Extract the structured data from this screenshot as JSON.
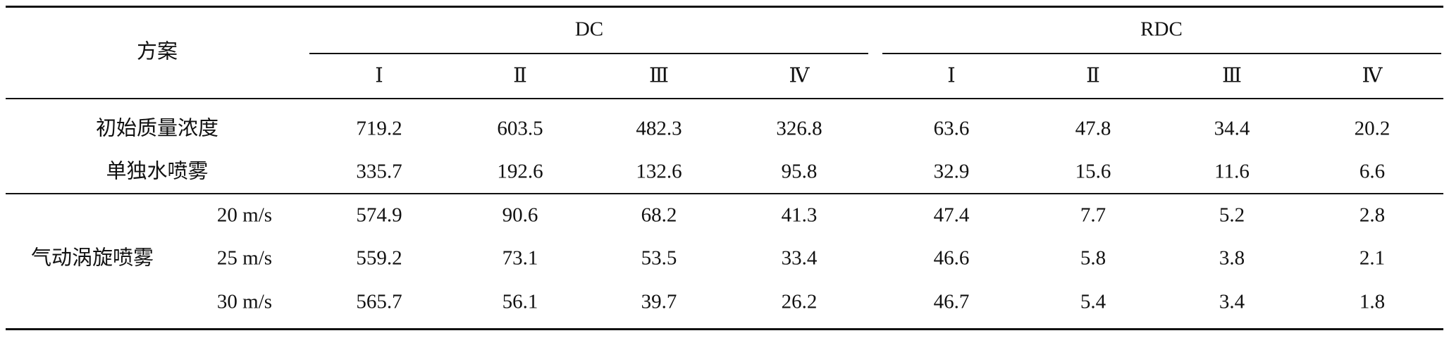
{
  "header": {
    "scheme": "方案",
    "groups": [
      {
        "label": "DC",
        "columns": [
          "Ⅰ",
          "Ⅱ",
          "Ⅲ",
          "Ⅳ"
        ]
      },
      {
        "label": "RDC",
        "columns": [
          "Ⅰ",
          "Ⅱ",
          "Ⅲ",
          "Ⅳ"
        ]
      }
    ]
  },
  "rows": [
    {
      "label": "初始质量浓度",
      "values": [
        "719.2",
        "603.5",
        "482.3",
        "326.8",
        "63.6",
        "47.8",
        "34.4",
        "20.2"
      ]
    },
    {
      "label": "单独水喷雾",
      "values": [
        "335.7",
        "192.6",
        "132.6",
        "95.8",
        "32.9",
        "15.6",
        "11.6",
        "6.6"
      ]
    }
  ],
  "group": {
    "label": "气动涡旋喷雾",
    "rows": [
      {
        "speed": "20 m/s",
        "values": [
          "574.9",
          "90.6",
          "68.2",
          "41.3",
          "47.4",
          "7.7",
          "5.2",
          "2.8"
        ]
      },
      {
        "speed": "25 m/s",
        "values": [
          "559.2",
          "73.1",
          "53.5",
          "33.4",
          "46.6",
          "5.8",
          "3.8",
          "2.1"
        ]
      },
      {
        "speed": "30 m/s",
        "values": [
          "565.7",
          "56.1",
          "39.7",
          "26.2",
          "46.7",
          "5.4",
          "3.4",
          "1.8"
        ]
      }
    ]
  }
}
